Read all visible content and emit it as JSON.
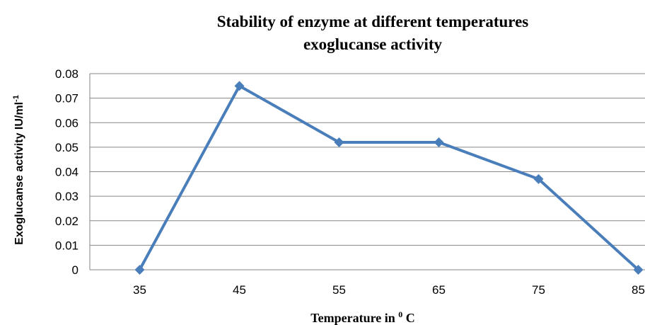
{
  "chart_data": {
    "type": "line",
    "title": [
      "Stability of enzyme at different temperatures",
      "exoglucanse  activity"
    ],
    "xlabel": {
      "text": "Temperature in ",
      "sup": "0",
      "after": " C"
    },
    "ylabel": {
      "text": "Exoglucanse activity IU/ml",
      "sup": "-1"
    },
    "categories": [
      "35",
      "45",
      "55",
      "65",
      "75",
      "85"
    ],
    "series": [
      {
        "color": "#4a7ebb",
        "values": [
          0,
          0.075,
          0.052,
          0.052,
          0.037,
          0
        ]
      }
    ],
    "ylim": [
      0,
      0.08
    ],
    "yticks": [
      0,
      0.01,
      0.02,
      0.03,
      0.04,
      0.05,
      0.06,
      0.07,
      0.08
    ],
    "grid": true
  }
}
